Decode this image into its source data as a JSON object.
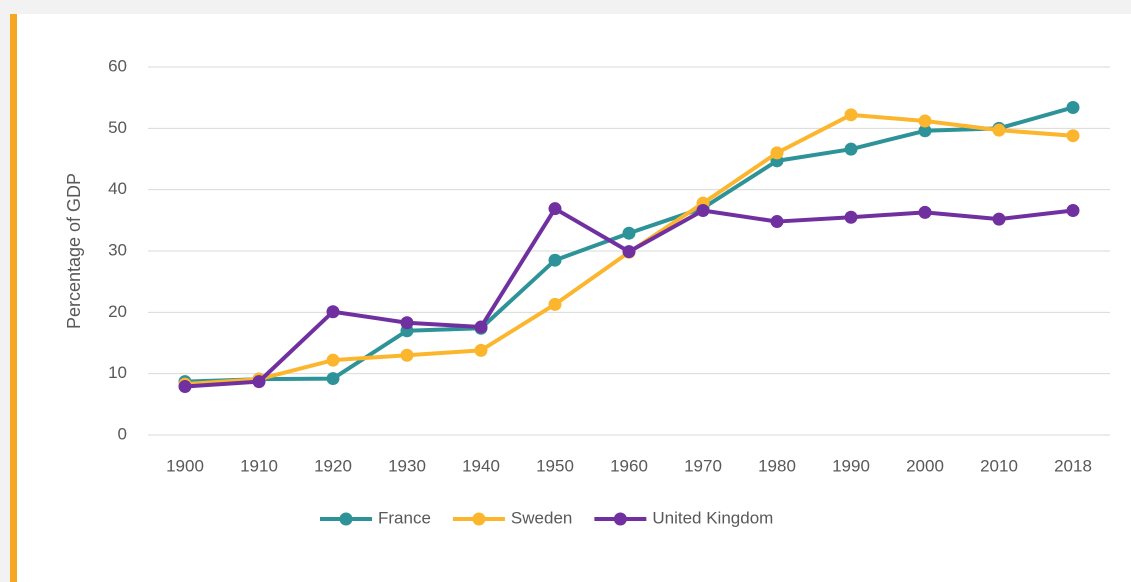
{
  "chart_data": {
    "type": "line",
    "y_label": "Percentage of GDP",
    "categories": [
      "1900",
      "1910",
      "1920",
      "1930",
      "1940",
      "1950",
      "1960",
      "1970",
      "1980",
      "1990",
      "2000",
      "2010",
      "2018"
    ],
    "series": [
      {
        "name": "France",
        "color": "#2e9398",
        "values": [
          8.7,
          9.1,
          9.2,
          17.0,
          17.4,
          28.5,
          32.9,
          37.0,
          44.7,
          46.6,
          49.6,
          50.0,
          53.4
        ]
      },
      {
        "name": "Sweden",
        "color": "#fbb62d",
        "values": [
          8.3,
          9.1,
          12.2,
          13.0,
          13.8,
          21.3,
          29.8,
          37.8,
          46.0,
          52.2,
          51.2,
          49.7,
          48.8
        ]
      },
      {
        "name": "United Kingdom",
        "color": "#7030a0",
        "values": [
          7.9,
          8.7,
          20.1,
          18.3,
          17.6,
          36.9,
          29.9,
          36.6,
          34.8,
          35.5,
          36.3,
          35.2,
          36.6
        ]
      }
    ],
    "ylim": [
      0,
      60
    ],
    "yticks": [
      0,
      10,
      20,
      30,
      40,
      50,
      60
    ],
    "grid": true,
    "legend": "bottom",
    "accent_color": "#f5a623"
  }
}
